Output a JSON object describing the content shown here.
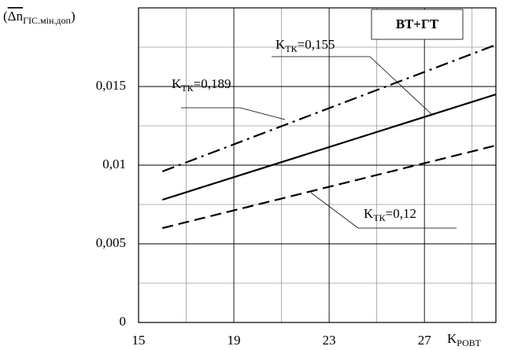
{
  "chart_data": {
    "type": "line",
    "ylabel": {
      "open": "(",
      "main": "Δn",
      "sub": "ГІС.мін.доп",
      "close": ")"
    },
    "xlabel": {
      "main": "K",
      "sub": "РОВТ"
    },
    "box_label": "ВТ+ГТ",
    "x": [
      16,
      30
    ],
    "series": [
      {
        "label": {
          "main": "K",
          "sub": "ТК",
          "rest": "=0,189"
        },
        "color": "#000000",
        "dash": "dashdot",
        "values": [
          0.0096,
          0.01765
        ]
      },
      {
        "label": {
          "main": "K",
          "sub": "ТК",
          "rest": "=0,155"
        },
        "color": "#000000",
        "dash": "solid",
        "values": [
          0.0078,
          0.0145
        ]
      },
      {
        "label": {
          "main": "K",
          "sub": "ТК",
          "rest": "=0,12"
        },
        "color": "#000000",
        "dash": "dashed",
        "values": [
          0.006,
          0.01125
        ]
      }
    ],
    "xlim": [
      15,
      30
    ],
    "xticks": [
      15,
      19,
      23,
      27
    ],
    "xminor": [
      17,
      21,
      25,
      29
    ],
    "ylim": [
      0,
      0.02
    ],
    "yticks": [
      0,
      {
        "value": 0.005,
        "label": "0,005"
      },
      {
        "value": 0.01,
        "label": "0,01"
      },
      {
        "value": 0.015,
        "label": "0,015"
      }
    ],
    "yminor": [
      0.0025,
      0.0075,
      0.0125,
      0.0175
    ],
    "grid": true
  }
}
